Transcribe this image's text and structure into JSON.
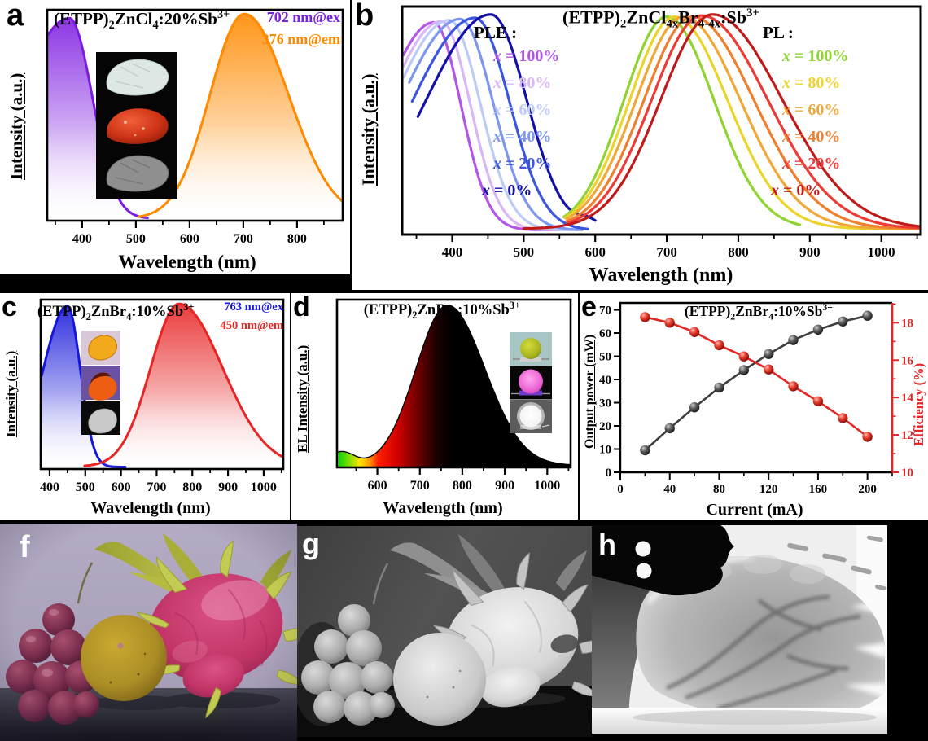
{
  "panels": {
    "a": {
      "letter": "a",
      "title": "(ETPP)_{2}ZnCl_{4}:20%Sb^{3+}",
      "xlabel": "Wavelength (nm)",
      "ylabel": "Intensity (a.u.)",
      "annotations": [
        {
          "text": "702 nm@ex",
          "color": "#7b1fe0"
        },
        {
          "text": "376 nm@em",
          "color": "#ff8a00"
        }
      ]
    },
    "b": {
      "letter": "b",
      "title": "(ETPP)_{2}ZnCl_{4x}Br_{4-4x}:Sb^{3+}",
      "xlabel": "Wavelength (nm)",
      "ylabel": "Intensity (a.u.)",
      "ple": {
        "heading": "PLE :",
        "items": [
          {
            "var": "x",
            "text": "= 100%",
            "color": "#b355e8"
          },
          {
            "var": "x",
            "text": "= 80%",
            "color": "#d9b6f6"
          },
          {
            "var": "x",
            "text": "= 60%",
            "color": "#bccbf8"
          },
          {
            "var": "x",
            "text": "= 40%",
            "color": "#7d96ef"
          },
          {
            "var": "x",
            "text": "= 20%",
            "color": "#3b55de"
          },
          {
            "var": "x",
            "text": "= 0%",
            "color": "#1511a8"
          }
        ]
      },
      "pl": {
        "heading": "PL :",
        "items": [
          {
            "var": "x",
            "text": "= 100%",
            "color": "#8fd431"
          },
          {
            "var": "x",
            "text": "= 80%",
            "color": "#ecd42b"
          },
          {
            "var": "x",
            "text": "= 60%",
            "color": "#f1a837"
          },
          {
            "var": "x",
            "text": "= 40%",
            "color": "#ef7f2e"
          },
          {
            "var": "x",
            "text": "= 20%",
            "color": "#ee3a34"
          },
          {
            "var": "x",
            "text": "= 0%",
            "color": "#c11a1a"
          }
        ]
      }
    },
    "c": {
      "letter": "c",
      "title": "(ETPP)_{2}ZnBr_{4}:10%Sb^{3+}",
      "xlabel": "Wavelength (nm)",
      "ylabel": "Intensity (a.u.)",
      "annotations": [
        {
          "text": "763 nm@ex",
          "color": "#1616dc"
        },
        {
          "text": "450 nm@em",
          "color": "#e82525"
        }
      ]
    },
    "d": {
      "letter": "d",
      "title": "(ETPP)_{2}ZnBr_{4}:10%Sb^{3+}",
      "xlabel": "Wavelength (nm)",
      "ylabel": "EL Intensity (a.u.)"
    },
    "e": {
      "letter": "e",
      "title": "(ETPP)_{2}ZnBr_{4}:10%Sb^{3+}",
      "xlabel": "Current (mA)",
      "ylabel_left": "Output power (mW)",
      "ylabel_right": "Efficiency (%)",
      "right_axis_color": "#e42626"
    },
    "f": {
      "letter": "f"
    },
    "g": {
      "letter": "g"
    },
    "h": {
      "letter": "h"
    }
  },
  "chart_data": [
    {
      "id": "a",
      "type": "area",
      "title": "(ETPP)2ZnCl4:20%Sb3+",
      "xlabel": "Wavelength (nm)",
      "ylabel": "Intensity (a.u.)",
      "xlim": [
        335,
        885
      ],
      "xticks": [
        400,
        500,
        600,
        700,
        800
      ],
      "xminor": 50,
      "series": [
        {
          "name": "excitation (em 702 nm)",
          "peak": 376,
          "sigma_l": 95,
          "sigma_r": 43,
          "amp": 0.95,
          "base": 0.01,
          "range": [
            337,
            522
          ],
          "color": "#7d1be0",
          "fill_top": "#7d1be0"
        },
        {
          "name": "emission (ex 376 nm)",
          "peak": 702,
          "sigma_l": 64,
          "sigma_r": 82,
          "amp": 0.97,
          "base": 0.01,
          "range": [
            505,
            883
          ],
          "color": "#ff8a00",
          "fill_top": "#ff8a00"
        }
      ]
    },
    {
      "id": "b",
      "type": "line",
      "title": "(ETPP)2ZnCl4xBr4-4x:Sb3+",
      "xlabel": "Wavelength (nm)",
      "ylabel": "Intensity (a.u.)",
      "xlim": [
        330,
        1055
      ],
      "xticks": [
        400,
        500,
        600,
        700,
        800,
        900,
        1000
      ],
      "xminor": 50,
      "series": [
        {
          "name": "PLE x=100%",
          "peak": 374,
          "sigma_l": 72,
          "sigma_r": 38,
          "amp": 0.91,
          "base": 0.02,
          "range": [
            332,
            560
          ],
          "color": "#b355e8"
        },
        {
          "name": "PLE x=80%",
          "peak": 385,
          "sigma_l": 76,
          "sigma_r": 40,
          "amp": 0.915,
          "base": 0.02,
          "range": [
            332,
            568
          ],
          "color": "#d9b6f6"
        },
        {
          "name": "PLE x=60%",
          "peak": 396,
          "sigma_l": 80,
          "sigma_r": 43,
          "amp": 0.92,
          "base": 0.02,
          "range": [
            332,
            575
          ],
          "color": "#bccbf8"
        },
        {
          "name": "PLE x=40%",
          "peak": 411,
          "sigma_l": 84,
          "sigma_r": 46,
          "amp": 0.925,
          "base": 0.02,
          "range": [
            340,
            582
          ],
          "color": "#7d96ef"
        },
        {
          "name": "PLE x=20%",
          "peak": 432,
          "sigma_l": 88,
          "sigma_r": 48,
          "amp": 0.93,
          "base": 0.02,
          "range": [
            344,
            590
          ],
          "color": "#3b55de"
        },
        {
          "name": "PLE x=0%",
          "peak": 454,
          "sigma_l": 90,
          "sigma_r": 50,
          "amp": 0.945,
          "base": 0.02,
          "range": [
            352,
            600
          ],
          "color": "#1511a8",
          "bumps": [
            {
              "peak": 590,
              "sigma": 15,
              "amp": 0.035
            }
          ]
        },
        {
          "name": "PL x=100%",
          "peak": 700,
          "sigma_l": 60,
          "sigma_r": 66,
          "amp": 0.93,
          "base": 0.025,
          "range": [
            556,
            886
          ],
          "color": "#8fd431"
        },
        {
          "name": "PL x=80%",
          "peak": 711,
          "sigma_l": 63,
          "sigma_r": 74,
          "amp": 0.93,
          "base": 0.025,
          "range": [
            558,
            1052
          ],
          "color": "#ecd42b"
        },
        {
          "name": "PL x=60%",
          "peak": 723,
          "sigma_l": 66,
          "sigma_r": 80,
          "amp": 0.93,
          "base": 0.025,
          "range": [
            560,
            1052
          ],
          "color": "#f1a837"
        },
        {
          "name": "PL x=40%",
          "peak": 736,
          "sigma_l": 68,
          "sigma_r": 86,
          "amp": 0.93,
          "base": 0.025,
          "range": [
            560,
            1052
          ],
          "color": "#ef7f2e"
        },
        {
          "name": "PL x=20%",
          "peak": 749,
          "sigma_l": 70,
          "sigma_r": 92,
          "amp": 0.935,
          "base": 0.025,
          "range": [
            562,
            1052
          ],
          "color": "#ee3a34"
        },
        {
          "name": "PL x=0%",
          "peak": 764,
          "sigma_l": 72,
          "sigma_r": 97,
          "amp": 0.94,
          "base": 0.025,
          "range": [
            500,
            1052
          ],
          "color": "#c11a1a"
        }
      ]
    },
    {
      "id": "c",
      "type": "area",
      "title": "(ETPP)2ZnBr4:10%Sb3+",
      "xlabel": "Wavelength (nm)",
      "ylabel": "Intensity (a.u.)",
      "xlim": [
        375,
        1055
      ],
      "xticks": [
        400,
        500,
        600,
        700,
        800,
        900,
        1000
      ],
      "xminor": 50,
      "series": [
        {
          "name": "excitation (em 763 nm)",
          "peak": 450,
          "sigma_l": 68,
          "sigma_r": 36,
          "amp": 0.95,
          "base": 0.012,
          "range": [
            378,
            612
          ],
          "color": "#1616dc",
          "fill_top": "#1616dc"
        },
        {
          "name": "emission (ex 450 nm)",
          "peak": 763,
          "sigma_l": 80,
          "sigma_r": 122,
          "amp": 0.96,
          "base": 0.015,
          "range": [
            498,
            1053
          ],
          "color": "#e82525",
          "fill_top": "#e82525"
        }
      ]
    },
    {
      "id": "d",
      "type": "area",
      "title": "(ETPP)2ZnBr4:10%Sb3+",
      "xlabel": "Wavelength (nm)",
      "ylabel": "EL Intensity (a.u.)",
      "xlim": [
        505,
        1055
      ],
      "xticks": [
        600,
        700,
        800,
        900,
        1000
      ],
      "xminor": 50,
      "series": [
        {
          "name": "EL spectrum",
          "peak": 765,
          "sigma_l": 74,
          "sigma_r": 88,
          "amp": 0.955,
          "base": 0.012,
          "range": [
            508,
            1053
          ],
          "color": "#000000",
          "bumps": [
            {
              "peak": 515,
              "sigma": 30,
              "amp": 0.08
            }
          ],
          "fill_stops": [
            [
              508,
              "#0ad40a"
            ],
            [
              540,
              "#a0e000"
            ],
            [
              558,
              "#ffe400"
            ],
            [
              582,
              "#ff9600"
            ],
            [
              602,
              "#ff1e00"
            ],
            [
              648,
              "#cf0000"
            ],
            [
              695,
              "#6e0000"
            ],
            [
              740,
              "#190000"
            ],
            [
              778,
              "#000000"
            ],
            [
              1053,
              "#000000"
            ]
          ]
        }
      ]
    },
    {
      "id": "e",
      "type": "scatter-line",
      "title": "(ETPP)2ZnBr4:10%Sb3+",
      "xlabel": "Current (mA)",
      "x": [
        20,
        40,
        60,
        80,
        100,
        120,
        140,
        160,
        180,
        200
      ],
      "xlim": [
        0,
        220
      ],
      "xticks": [
        0,
        40,
        80,
        120,
        160,
        200
      ],
      "xminor": 20,
      "ylim_left": [
        0,
        73
      ],
      "yticks_left": [
        0,
        10,
        20,
        30,
        40,
        50,
        60,
        70
      ],
      "ylim_right": [
        10,
        19.06
      ],
      "yticks_right": [
        10,
        12,
        14,
        16,
        18
      ],
      "yminor_right": 1,
      "series": [
        {
          "name": "Output power (mW)",
          "axis": "left",
          "color": "#3f3f3f",
          "values": [
            9.5,
            19,
            28,
            36.5,
            44,
            51,
            57,
            61.5,
            65,
            67.5
          ]
        },
        {
          "name": "Efficiency (%)",
          "axis": "right",
          "color": "#e42626",
          "values": [
            18.3,
            18.0,
            17.5,
            16.8,
            16.2,
            15.5,
            14.6,
            13.8,
            12.9,
            11.9
          ]
        }
      ]
    }
  ]
}
